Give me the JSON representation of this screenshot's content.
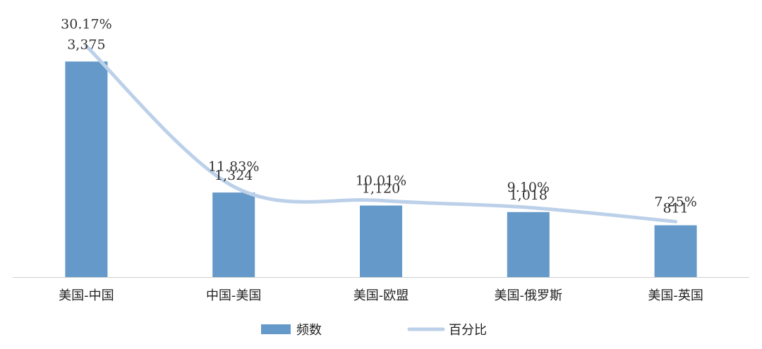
{
  "chart_data": {
    "type": "bar",
    "title": "",
    "xlabel": "",
    "ylabel": "",
    "categories": [
      "美国-中国",
      "中国-美国",
      "美国-欧盟",
      "美国-俄罗斯",
      "美国-英国"
    ],
    "series": [
      {
        "name": "频数",
        "type": "bar",
        "values": [
          3375,
          1324,
          1120,
          1018,
          811
        ],
        "labels": [
          "3,375",
          "1,324",
          "1,120",
          "1,018",
          "811"
        ],
        "color": "#6599c9"
      },
      {
        "name": "百分比",
        "type": "line",
        "values": [
          30.17,
          11.83,
          10.01,
          9.1,
          7.25
        ],
        "labels": [
          "30.17%",
          "11.83%",
          "10.01%",
          "9.10%",
          "7.25%"
        ],
        "color": "#bcd1e9"
      }
    ],
    "ylim": [
      0,
      3400
    ],
    "y2lim": [
      0,
      30.5
    ],
    "grid": false,
    "legend": "bottom"
  }
}
